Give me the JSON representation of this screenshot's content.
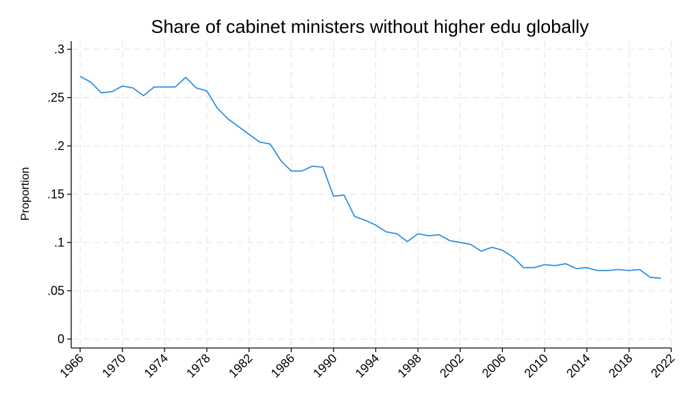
{
  "chart_data": {
    "type": "line",
    "title": "Share of cabinet ministers without higher edu globally",
    "xlabel": "",
    "ylabel": "Proportion",
    "xlim": [
      1966,
      2022
    ],
    "ylim": [
      0,
      0.3
    ],
    "grid": true,
    "legend": "none",
    "x_ticks": [
      {
        "value": 1966,
        "label": "1966"
      },
      {
        "value": 1970,
        "label": "1970"
      },
      {
        "value": 1974,
        "label": "1974"
      },
      {
        "value": 1978,
        "label": "1978"
      },
      {
        "value": 1982,
        "label": "1982"
      },
      {
        "value": 1986,
        "label": "1986"
      },
      {
        "value": 1990,
        "label": "1990"
      },
      {
        "value": 1994,
        "label": "1994"
      },
      {
        "value": 1998,
        "label": "1998"
      },
      {
        "value": 2002,
        "label": "2002"
      },
      {
        "value": 2006,
        "label": "2006"
      },
      {
        "value": 2010,
        "label": "2010"
      },
      {
        "value": 2014,
        "label": "2014"
      },
      {
        "value": 2018,
        "label": "2018"
      },
      {
        "value": 2022,
        "label": "2022"
      }
    ],
    "y_ticks": [
      {
        "value": 0,
        "label": "0"
      },
      {
        "value": 0.05,
        "label": ".05"
      },
      {
        "value": 0.1,
        "label": ".1"
      },
      {
        "value": 0.15,
        "label": ".15"
      },
      {
        "value": 0.2,
        "label": ".2"
      },
      {
        "value": 0.25,
        "label": ".25"
      },
      {
        "value": 0.3,
        "label": ".3"
      }
    ],
    "series": [
      {
        "color": "#2f8fe0",
        "x": [
          1966,
          1967,
          1968,
          1969,
          1970,
          1971,
          1972,
          1973,
          1974,
          1975,
          1976,
          1977,
          1978,
          1979,
          1980,
          1981,
          1982,
          1983,
          1984,
          1985,
          1986,
          1987,
          1988,
          1989,
          1990,
          1991,
          1992,
          1993,
          1994,
          1995,
          1996,
          1997,
          1998,
          1999,
          2000,
          2001,
          2002,
          2003,
          2004,
          2005,
          2006,
          2007,
          2008,
          2009,
          2010,
          2011,
          2012,
          2013,
          2014,
          2015,
          2016,
          2017,
          2018,
          2019,
          2020,
          2021
        ],
        "y": [
          0.272,
          0.266,
          0.255,
          0.256,
          0.262,
          0.26,
          0.252,
          0.261,
          0.261,
          0.261,
          0.271,
          0.26,
          0.257,
          0.239,
          0.228,
          0.22,
          0.212,
          0.204,
          0.202,
          0.185,
          0.174,
          0.174,
          0.179,
          0.178,
          0.148,
          0.149,
          0.127,
          0.123,
          0.118,
          0.111,
          0.109,
          0.101,
          0.109,
          0.107,
          0.108,
          0.102,
          0.1,
          0.098,
          0.091,
          0.095,
          0.092,
          0.085,
          0.074,
          0.074,
          0.077,
          0.076,
          0.078,
          0.073,
          0.074,
          0.071,
          0.071,
          0.072,
          0.071,
          0.072,
          0.064,
          0.063
        ]
      }
    ]
  }
}
